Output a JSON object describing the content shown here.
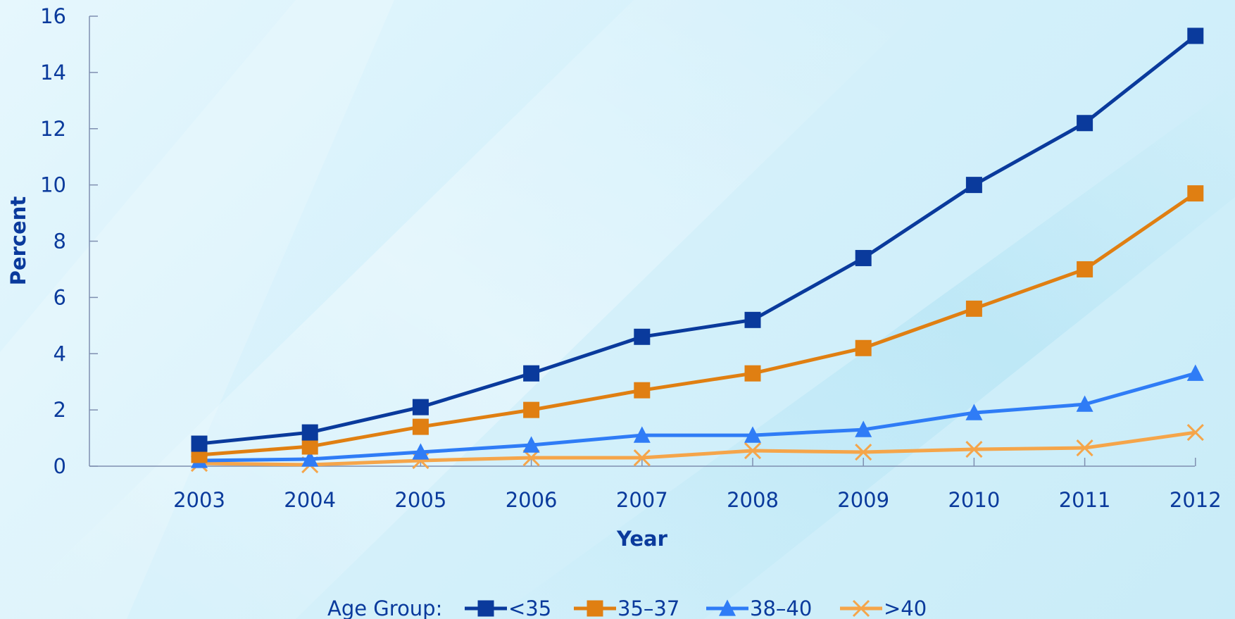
{
  "chart_data": {
    "type": "line",
    "title": "",
    "xlabel": "Year",
    "ylabel": "Percent",
    "x": [
      "2003",
      "2004",
      "2005",
      "2006",
      "2007",
      "2008",
      "2009",
      "2010",
      "2011",
      "2012"
    ],
    "yticks": [
      "0",
      "2",
      "4",
      "6",
      "8",
      "10",
      "12",
      "14",
      "16"
    ],
    "ylim": [
      0,
      16
    ],
    "grid": false,
    "legend": {
      "title": "Age Group:",
      "placement": "bottom-center"
    },
    "series": [
      {
        "name": "<35",
        "color": "#0a3a9c",
        "marker": "square",
        "values": [
          0.8,
          1.2,
          2.1,
          3.3,
          4.6,
          5.2,
          7.4,
          10.0,
          12.2,
          15.3
        ]
      },
      {
        "name": "35–37",
        "color": "#e07f12",
        "marker": "square",
        "values": [
          0.4,
          0.7,
          1.4,
          2.0,
          2.7,
          3.3,
          4.2,
          5.6,
          7.0,
          9.7
        ]
      },
      {
        "name": "38–40",
        "color": "#2f7cf6",
        "marker": "triangle",
        "values": [
          0.2,
          0.25,
          0.5,
          0.75,
          1.1,
          1.1,
          1.3,
          1.9,
          2.2,
          3.3
        ]
      },
      {
        "name": ">40",
        "color": "#f5a54a",
        "marker": "x",
        "values": [
          0.1,
          0.05,
          0.2,
          0.3,
          0.3,
          0.55,
          0.5,
          0.6,
          0.65,
          1.2
        ]
      }
    ]
  }
}
